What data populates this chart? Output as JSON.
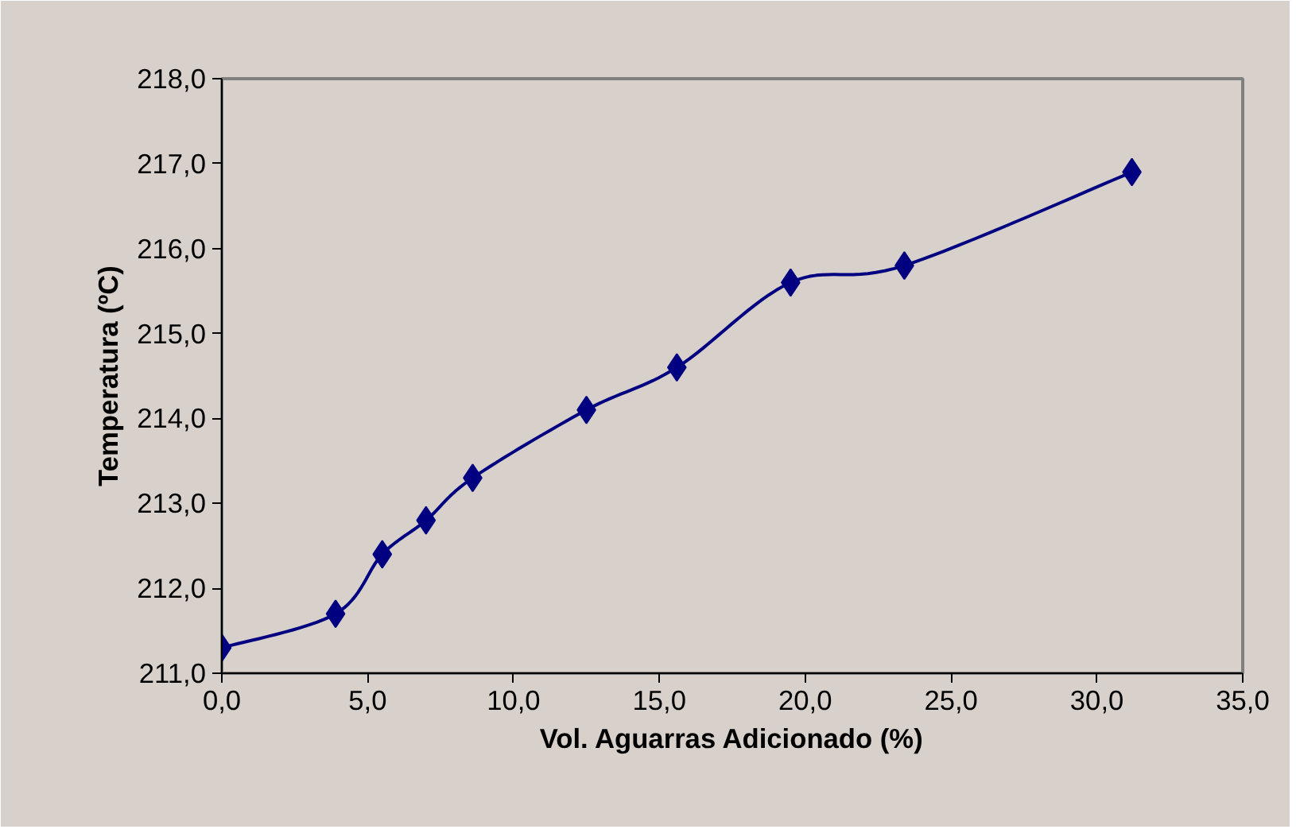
{
  "chart_data": {
    "type": "line",
    "xlabel": "Vol. Aguarras Adicionado (%)",
    "ylabel": "Temperatura (ºC)",
    "x": [
      0.0,
      3.9,
      5.5,
      7.0,
      8.6,
      12.5,
      15.6,
      19.5,
      23.4,
      31.2
    ],
    "series": [
      {
        "color": "#000080",
        "values": [
          211.3,
          211.7,
          212.4,
          212.8,
          213.3,
          214.1,
          214.6,
          215.6,
          215.8,
          216.9
        ]
      }
    ],
    "xlim": [
      0,
      35
    ],
    "ylim": [
      211,
      218
    ],
    "xticks": [
      {
        "value": 0,
        "label": "0,0"
      },
      {
        "value": 5,
        "label": "5,0"
      },
      {
        "value": 10,
        "label": "10,0"
      },
      {
        "value": 15,
        "label": "15,0"
      },
      {
        "value": 20,
        "label": "20,0"
      },
      {
        "value": 25,
        "label": "25,0"
      },
      {
        "value": 30,
        "label": "30,0"
      },
      {
        "value": 35,
        "label": "35,0"
      }
    ],
    "yticks": [
      {
        "value": 211,
        "label": "211,0"
      },
      {
        "value": 212,
        "label": "212,0"
      },
      {
        "value": 213,
        "label": "213,0"
      },
      {
        "value": 214,
        "label": "214,0"
      },
      {
        "value": 215,
        "label": "215,0"
      },
      {
        "value": 216,
        "label": "216,0"
      },
      {
        "value": 217,
        "label": "217,0"
      },
      {
        "value": 218,
        "label": "218,0"
      }
    ],
    "marker": "diamond",
    "line_style": "solid"
  }
}
